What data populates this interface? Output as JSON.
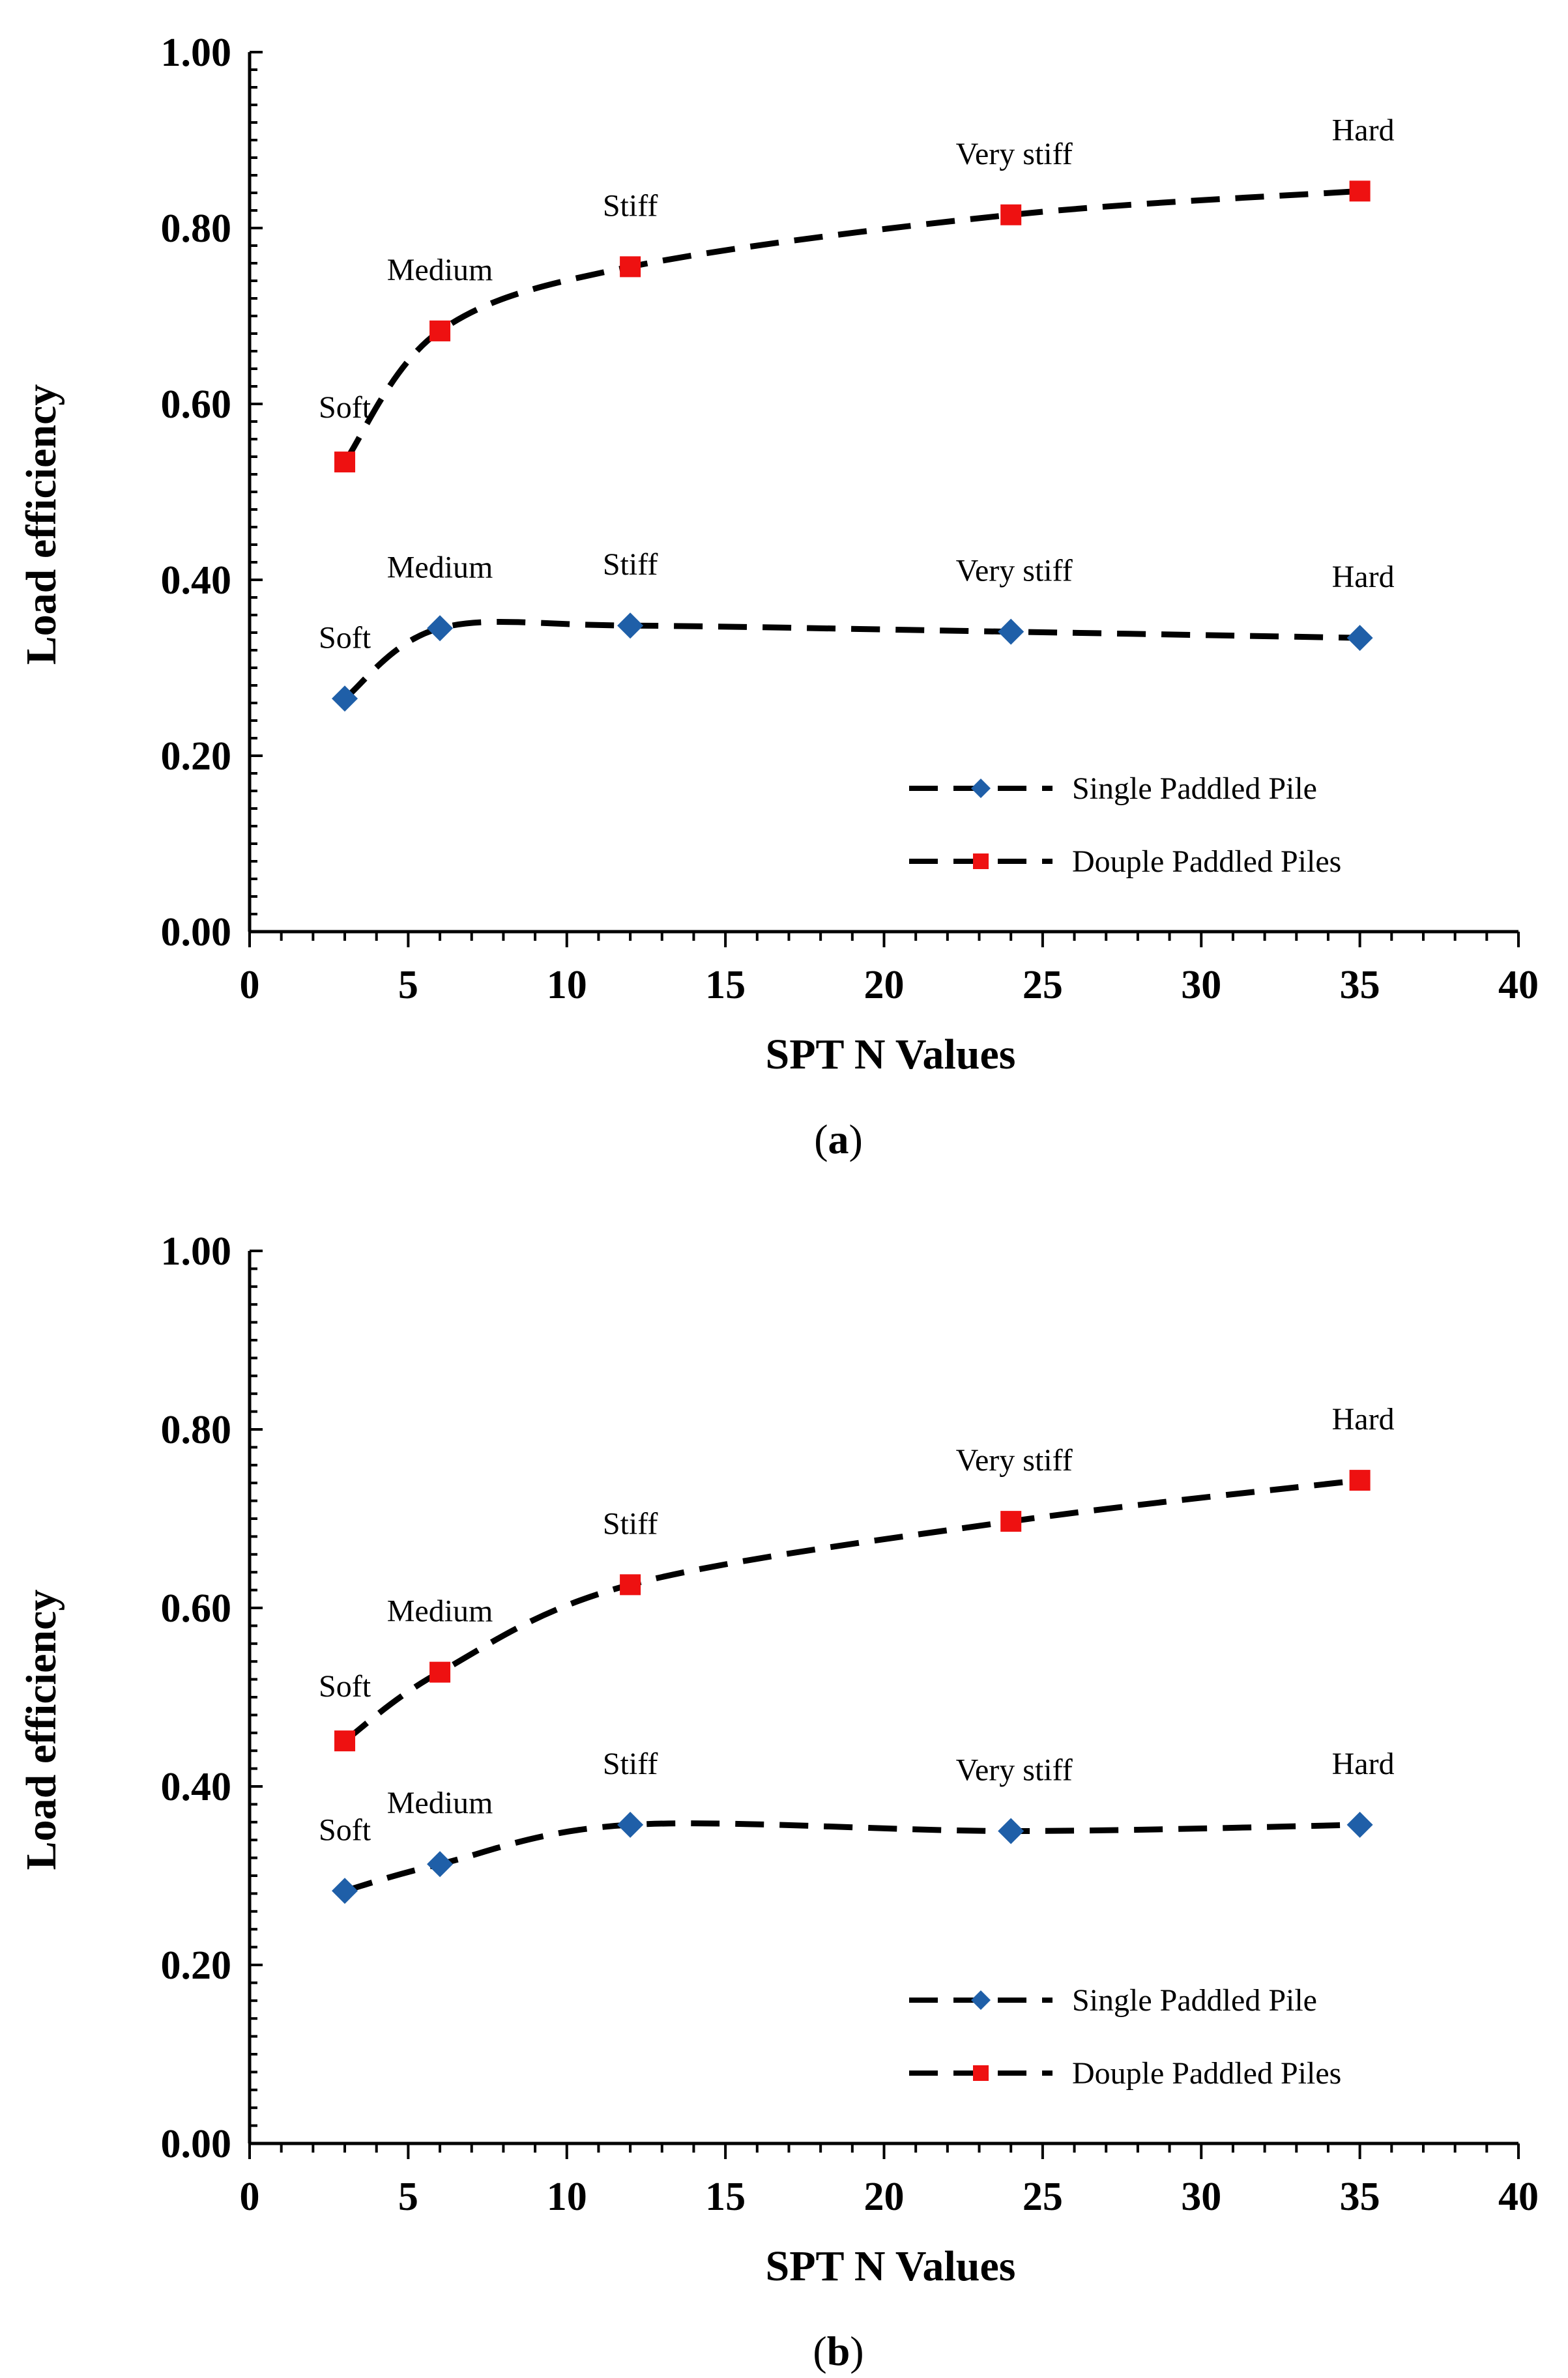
{
  "figure": {
    "panels": [
      "a",
      "b"
    ]
  },
  "chart_data": [
    {
      "type": "line",
      "caption_letter": "a",
      "caption_open": "(",
      "caption_close": ")",
      "xlabel": "SPT N Values",
      "ylabel": "Load efficiency",
      "xlim": [
        0,
        40
      ],
      "ylim": [
        0,
        1
      ],
      "xticks": [
        "0",
        "5",
        "10",
        "15",
        "20",
        "25",
        "30",
        "35",
        "40"
      ],
      "yticks": [
        "0.00",
        "0.20",
        "0.40",
        "0.60",
        "0.80",
        "1.00"
      ],
      "grid": false,
      "legend_position": "bottom-right",
      "x": [
        3,
        6,
        12,
        24,
        35
      ],
      "series": [
        {
          "name": "Single Paddled Pile",
          "marker": "diamond",
          "color": "#1f5fa8",
          "values": [
            0.265,
            0.345,
            0.348,
            0.341,
            0.334
          ],
          "labels": [
            "Soft",
            "Medium",
            "Stiff",
            "Very stiff",
            "Hard"
          ]
        },
        {
          "name": "Douple Paddled Piles",
          "marker": "square",
          "color": "#ee1111",
          "values": [
            0.534,
            0.683,
            0.756,
            0.815,
            0.842
          ],
          "labels": [
            "Soft",
            "Medium",
            "Stiff",
            "Very stiff",
            "Hard"
          ]
        }
      ]
    },
    {
      "type": "line",
      "caption_letter": "b",
      "caption_open": "(",
      "caption_close": ")",
      "xlabel": "SPT N Values",
      "ylabel": "Load efficiency",
      "xlim": [
        0,
        40
      ],
      "ylim": [
        0,
        1
      ],
      "xticks": [
        "0",
        "5",
        "10",
        "15",
        "20",
        "25",
        "30",
        "35",
        "40"
      ],
      "yticks": [
        "0.00",
        "0.20",
        "0.40",
        "0.60",
        "0.80",
        "1.00"
      ],
      "grid": false,
      "legend_position": "bottom-right",
      "x": [
        3,
        6,
        12,
        24,
        35
      ],
      "series": [
        {
          "name": "Single Paddled Pile",
          "marker": "diamond",
          "color": "#1f5fa8",
          "values": [
            0.283,
            0.313,
            0.357,
            0.35,
            0.357
          ],
          "labels": [
            "Soft",
            "Medium",
            "Stiff",
            "Very stiff",
            "Hard"
          ]
        },
        {
          "name": "Douple Paddled Piles",
          "marker": "square",
          "color": "#ee1111",
          "values": [
            0.451,
            0.528,
            0.626,
            0.697,
            0.743
          ],
          "labels": [
            "Soft",
            "Medium",
            "Stiff",
            "Very stiff",
            "Hard"
          ]
        }
      ]
    }
  ]
}
